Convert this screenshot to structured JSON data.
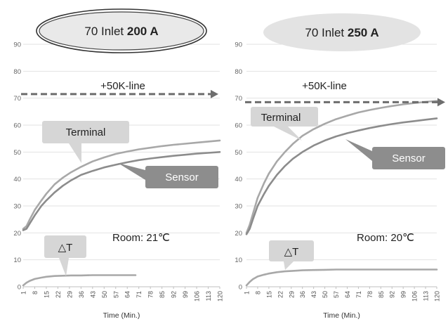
{
  "chart_data": [
    {
      "type": "line",
      "title": "70 Inlet 200 A",
      "title_plain": "70 Inlet ",
      "title_bold": "200 A",
      "title_style": "oval-outlined",
      "xlabel": "Time (Min.)",
      "ylabel": "",
      "ylim": [
        0,
        90
      ],
      "yticks": [
        0,
        10,
        20,
        30,
        40,
        50,
        60,
        70,
        80,
        90
      ],
      "xlim": [
        1,
        120
      ],
      "xticks": [
        "1",
        "8",
        "15",
        "22",
        "29",
        "36",
        "43",
        "50",
        "57",
        "64",
        "71",
        "78",
        "85",
        "92",
        "99",
        "106",
        "113",
        "120"
      ],
      "grid": true,
      "limit_line": {
        "label": "+50K-line",
        "value": 71.5
      },
      "room_label": "Room: 21℃",
      "series": [
        {
          "name": "Terminal",
          "color": "#a8a8a8",
          "x": [
            1,
            3,
            5,
            8,
            12,
            15,
            20,
            25,
            30,
            36,
            43,
            50,
            57,
            64,
            71,
            78,
            85,
            92,
            99,
            106,
            113,
            120
          ],
          "y": [
            21.5,
            22.5,
            25,
            28.5,
            32,
            34.5,
            38,
            40.5,
            42.5,
            44.5,
            46.5,
            48,
            49.3,
            50.2,
            51,
            51.6,
            52.2,
            52.7,
            53.1,
            53.5,
            53.9,
            54.3
          ]
        },
        {
          "name": "Sensor",
          "color": "#8c8c8c",
          "x": [
            1,
            3,
            5,
            8,
            12,
            15,
            20,
            25,
            30,
            36,
            43,
            50,
            57,
            64,
            71,
            78,
            85,
            92,
            99,
            106,
            113,
            120
          ],
          "y": [
            21,
            21.5,
            23.5,
            26.5,
            30,
            32,
            35,
            37.5,
            39.5,
            41.5,
            43,
            44.3,
            45.3,
            46.2,
            47,
            47.6,
            48.1,
            48.6,
            49,
            49.4,
            49.7,
            50
          ]
        },
        {
          "name": "△T",
          "color": "#a8a8a8",
          "x": [
            1,
            3,
            5,
            8,
            12,
            15,
            20,
            25,
            30,
            36,
            43,
            50,
            57,
            64,
            69
          ],
          "y": [
            0.5,
            1.5,
            2.2,
            2.9,
            3.4,
            3.7,
            4,
            4.1,
            4.2,
            4.2,
            4.3,
            4.3,
            4.3,
            4.3,
            4.3
          ]
        }
      ]
    },
    {
      "type": "line",
      "title": "70 Inlet 250 A",
      "title_plain": "70 Inlet ",
      "title_bold": "250 A",
      "title_style": "oval-filled",
      "xlabel": "Time (Min.)",
      "ylabel": "",
      "ylim": [
        0,
        90
      ],
      "yticks": [
        0,
        10,
        20,
        30,
        40,
        50,
        60,
        70,
        80,
        90
      ],
      "xlim": [
        1,
        120
      ],
      "xticks": [
        "1",
        "8",
        "15",
        "22",
        "29",
        "36",
        "43",
        "50",
        "57",
        "64",
        "71",
        "78",
        "85",
        "92",
        "99",
        "106",
        "113",
        "120"
      ],
      "grid": true,
      "limit_line": {
        "label": "+50K-line",
        "value": 68.5
      },
      "room_label": "Room: 20℃",
      "series": [
        {
          "name": "Terminal",
          "color": "#a8a8a8",
          "x": [
            1,
            3,
            5,
            8,
            12,
            15,
            20,
            25,
            30,
            36,
            43,
            50,
            57,
            64,
            71,
            78,
            85,
            92,
            99,
            106,
            113,
            120
          ],
          "y": [
            20,
            23,
            27,
            33,
            38.5,
            42,
            46.5,
            50,
            53,
            56,
            58.5,
            60.5,
            62.2,
            63.5,
            64.7,
            65.6,
            66.4,
            67.1,
            67.7,
            68.2,
            68.6,
            69
          ]
        },
        {
          "name": "Sensor",
          "color": "#8c8c8c",
          "x": [
            1,
            3,
            5,
            8,
            12,
            15,
            20,
            25,
            30,
            36,
            43,
            50,
            57,
            64,
            71,
            78,
            85,
            92,
            99,
            106,
            113,
            120
          ],
          "y": [
            19.5,
            21.5,
            25,
            30,
            34.5,
            37.5,
            41.5,
            44.8,
            47.5,
            50,
            52.4,
            54.3,
            55.8,
            57,
            58,
            58.9,
            59.7,
            60.4,
            61,
            61.5,
            62,
            62.5
          ]
        },
        {
          "name": "△T",
          "color": "#a8a8a8",
          "x": [
            1,
            3,
            5,
            8,
            12,
            15,
            20,
            25,
            30,
            36,
            43,
            50,
            57,
            64,
            71,
            78,
            85,
            92,
            99,
            106,
            113,
            120
          ],
          "y": [
            0.5,
            1.8,
            2.8,
            3.8,
            4.5,
            4.9,
            5.4,
            5.7,
            5.9,
            6.1,
            6.2,
            6.3,
            6.4,
            6.4,
            6.4,
            6.4,
            6.4,
            6.4,
            6.4,
            6.4,
            6.4,
            6.4
          ]
        }
      ]
    }
  ]
}
